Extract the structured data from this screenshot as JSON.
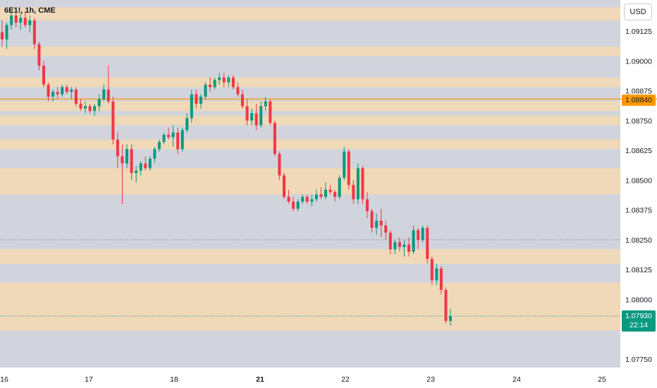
{
  "header": {
    "symbol_title": "6E1!, 1h, CME",
    "currency": "USD"
  },
  "price_tags": {
    "level": "1.08840",
    "last": "1.07930",
    "countdown": "22:14"
  },
  "colors": {
    "up": "#089981",
    "down": "#f23645",
    "zone": "#f0d9b5",
    "level_line": "#ff9800",
    "background": "#d1d4dc",
    "axis_text": "#131722"
  },
  "chart_data": {
    "type": "candlestick",
    "title": "6E1!, 1h, CME",
    "y_axis": {
      "ticks": [
        "1.09125",
        "1.09000",
        "1.08875",
        "1.08750",
        "1.08625",
        "1.08500",
        "1.08375",
        "1.08250",
        "1.08125",
        "1.08000",
        "1.07750"
      ],
      "range": [
        1.0767,
        1.093
      ]
    },
    "x_axis": {
      "ticks": [
        {
          "label": "16",
          "bold": false
        },
        {
          "label": "17",
          "bold": false
        },
        {
          "label": "18",
          "bold": false
        },
        {
          "label": "21",
          "bold": true
        },
        {
          "label": "22",
          "bold": false
        },
        {
          "label": "23",
          "bold": false
        },
        {
          "label": "24",
          "bold": false
        },
        {
          "label": "25",
          "bold": false
        }
      ]
    },
    "zones": [
      [
        1.09225,
        1.0917
      ],
      [
        1.0906,
        1.0902
      ],
      [
        1.0893,
        1.0889
      ],
      [
        1.0883,
        1.0879
      ],
      [
        1.0877,
        1.0873
      ],
      [
        1.0867,
        1.0863
      ],
      [
        1.0855,
        1.0844
      ],
      [
        1.0821,
        1.0815
      ],
      [
        1.0807,
        1.0787
      ]
    ],
    "horizontal_lines": [
      {
        "price": 1.0884,
        "style": "solid",
        "color": "#ff9800"
      },
      {
        "price": 1.0825,
        "style": "dotted",
        "color": "#787b86"
      },
      {
        "price": 1.0793,
        "style": "dotted",
        "color": "#089981"
      }
    ],
    "ohlc": [
      [
        1.0912,
        1.0917,
        1.0906,
        1.0909
      ],
      [
        1.0909,
        1.0916,
        1.0905,
        1.0915
      ],
      [
        1.0915,
        1.0921,
        1.0913,
        1.0919
      ],
      [
        1.0919,
        1.0922,
        1.0914,
        1.0916
      ],
      [
        1.0916,
        1.092,
        1.0913,
        1.0918
      ],
      [
        1.0918,
        1.0921,
        1.0914,
        1.0915
      ],
      [
        1.0915,
        1.0919,
        1.0912,
        1.0917
      ],
      [
        1.0917,
        1.0918,
        1.0905,
        1.0907
      ],
      [
        1.0907,
        1.0908,
        1.0896,
        1.0898
      ],
      [
        1.0898,
        1.09,
        1.0889,
        1.089
      ],
      [
        1.089,
        1.0891,
        1.0883,
        1.0885
      ],
      [
        1.0885,
        1.0888,
        1.0883,
        1.0887
      ],
      [
        1.0887,
        1.0889,
        1.0884,
        1.0886
      ],
      [
        1.0886,
        1.089,
        1.0885,
        1.0889
      ],
      [
        1.0889,
        1.089,
        1.0886,
        1.0887
      ],
      [
        1.0887,
        1.0889,
        1.0884,
        1.0888
      ],
      [
        1.0888,
        1.0889,
        1.0881,
        1.0882
      ],
      [
        1.0882,
        1.0884,
        1.0879,
        1.088
      ],
      [
        1.088,
        1.0883,
        1.0878,
        1.0881
      ],
      [
        1.0881,
        1.0882,
        1.0878,
        1.0879
      ],
      [
        1.0879,
        1.0882,
        1.0877,
        1.0881
      ],
      [
        1.0881,
        1.0886,
        1.0879,
        1.0884
      ],
      [
        1.0884,
        1.089,
        1.0883,
        1.0888
      ],
      [
        1.0888,
        1.0898,
        1.0882,
        1.0883
      ],
      [
        1.0883,
        1.0885,
        1.0865,
        1.0867
      ],
      [
        1.0867,
        1.087,
        1.0855,
        1.086
      ],
      [
        1.086,
        1.0865,
        1.084,
        1.0857
      ],
      [
        1.0857,
        1.0865,
        1.0855,
        1.0863
      ],
      [
        1.0863,
        1.0865,
        1.085,
        1.0853
      ],
      [
        1.0853,
        1.0856,
        1.0849,
        1.0854
      ],
      [
        1.0854,
        1.0858,
        1.0852,
        1.0857
      ],
      [
        1.0857,
        1.086,
        1.0854,
        1.0855
      ],
      [
        1.0855,
        1.086,
        1.0854,
        1.0859
      ],
      [
        1.0859,
        1.0864,
        1.0857,
        1.0863
      ],
      [
        1.0863,
        1.0867,
        1.0862,
        1.0866
      ],
      [
        1.0866,
        1.087,
        1.0865,
        1.0869
      ],
      [
        1.0869,
        1.0872,
        1.0867,
        1.0868
      ],
      [
        1.0868,
        1.0873,
        1.0864,
        1.087
      ],
      [
        1.087,
        1.0872,
        1.0861,
        1.0863
      ],
      [
        1.0863,
        1.0872,
        1.0862,
        1.0871
      ],
      [
        1.0871,
        1.0878,
        1.087,
        1.0876
      ],
      [
        1.0876,
        1.0888,
        1.0874,
        1.0886
      ],
      [
        1.0886,
        1.0888,
        1.088,
        1.0882
      ],
      [
        1.0882,
        1.0886,
        1.088,
        1.0885
      ],
      [
        1.0885,
        1.0891,
        1.0884,
        1.089
      ],
      [
        1.089,
        1.0893,
        1.0887,
        1.0889
      ],
      [
        1.0889,
        1.0893,
        1.0888,
        1.0892
      ],
      [
        1.0892,
        1.0895,
        1.089,
        1.0893
      ],
      [
        1.0893,
        1.0895,
        1.0889,
        1.0891
      ],
      [
        1.0891,
        1.0894,
        1.0889,
        1.0893
      ],
      [
        1.0893,
        1.0894,
        1.0888,
        1.0889
      ],
      [
        1.0889,
        1.0891,
        1.0885,
        1.0886
      ],
      [
        1.0886,
        1.0888,
        1.088,
        1.0881
      ],
      [
        1.0881,
        1.0884,
        1.0873,
        1.0875
      ],
      [
        1.0875,
        1.088,
        1.0873,
        1.0878
      ],
      [
        1.0878,
        1.0882,
        1.0871,
        1.0873
      ],
      [
        1.0873,
        1.0883,
        1.0872,
        1.0881
      ],
      [
        1.0881,
        1.0885,
        1.0879,
        1.0883
      ],
      [
        1.0883,
        1.0884,
        1.0873,
        1.0874
      ],
      [
        1.0874,
        1.0875,
        1.086,
        1.0861
      ],
      [
        1.0861,
        1.0862,
        1.085,
        1.0852
      ],
      [
        1.0852,
        1.0853,
        1.0842,
        1.0843
      ],
      [
        1.0843,
        1.0846,
        1.084,
        1.0841
      ],
      [
        1.0841,
        1.0843,
        1.0837,
        1.0838
      ],
      [
        1.0838,
        1.0842,
        1.0837,
        1.0841
      ],
      [
        1.0841,
        1.0844,
        1.084,
        1.0843
      ],
      [
        1.0843,
        1.0844,
        1.084,
        1.0841
      ],
      [
        1.0841,
        1.0844,
        1.0839,
        1.0842
      ],
      [
        1.0842,
        1.0846,
        1.0841,
        1.0844
      ],
      [
        1.0844,
        1.0847,
        1.0842,
        1.0843
      ],
      [
        1.0843,
        1.0849,
        1.0842,
        1.0846
      ],
      [
        1.0846,
        1.0848,
        1.0844,
        1.0845
      ],
      [
        1.0845,
        1.0846,
        1.0841,
        1.0843
      ],
      [
        1.0843,
        1.0852,
        1.0842,
        1.0851
      ],
      [
        1.0851,
        1.0864,
        1.085,
        1.0862
      ],
      [
        1.0862,
        1.0863,
        1.0846,
        1.0848
      ],
      [
        1.0848,
        1.085,
        1.084,
        1.0842
      ],
      [
        1.0842,
        1.0857,
        1.084,
        1.0855
      ],
      [
        1.0855,
        1.0856,
        1.084,
        1.0842
      ],
      [
        1.0842,
        1.0845,
        1.0834,
        1.0837
      ],
      [
        1.0837,
        1.0838,
        1.0828,
        1.083
      ],
      [
        1.083,
        1.0836,
        1.0827,
        1.0833
      ],
      [
        1.0833,
        1.0838,
        1.0826,
        1.0831
      ],
      [
        1.0831,
        1.0833,
        1.0825,
        1.0828
      ],
      [
        1.0828,
        1.0829,
        1.0819,
        1.0821
      ],
      [
        1.0821,
        1.0825,
        1.0819,
        1.0824
      ],
      [
        1.0824,
        1.0826,
        1.082,
        1.0822
      ],
      [
        1.0822,
        1.0825,
        1.0818,
        1.0823
      ],
      [
        1.0823,
        1.0826,
        1.0818,
        1.082
      ],
      [
        1.082,
        1.0831,
        1.0819,
        1.0829
      ],
      [
        1.0829,
        1.083,
        1.0821,
        1.0825
      ],
      [
        1.0825,
        1.0831,
        1.0824,
        1.083
      ],
      [
        1.083,
        1.0831,
        1.0815,
        1.0817
      ],
      [
        1.0817,
        1.0818,
        1.0806,
        1.0808
      ],
      [
        1.0808,
        1.0815,
        1.0806,
        1.0813
      ],
      [
        1.0813,
        1.0814,
        1.0802,
        1.0804
      ],
      [
        1.0804,
        1.0805,
        1.079,
        1.0791
      ],
      [
        1.0791,
        1.0796,
        1.0789,
        1.0793
      ]
    ]
  }
}
